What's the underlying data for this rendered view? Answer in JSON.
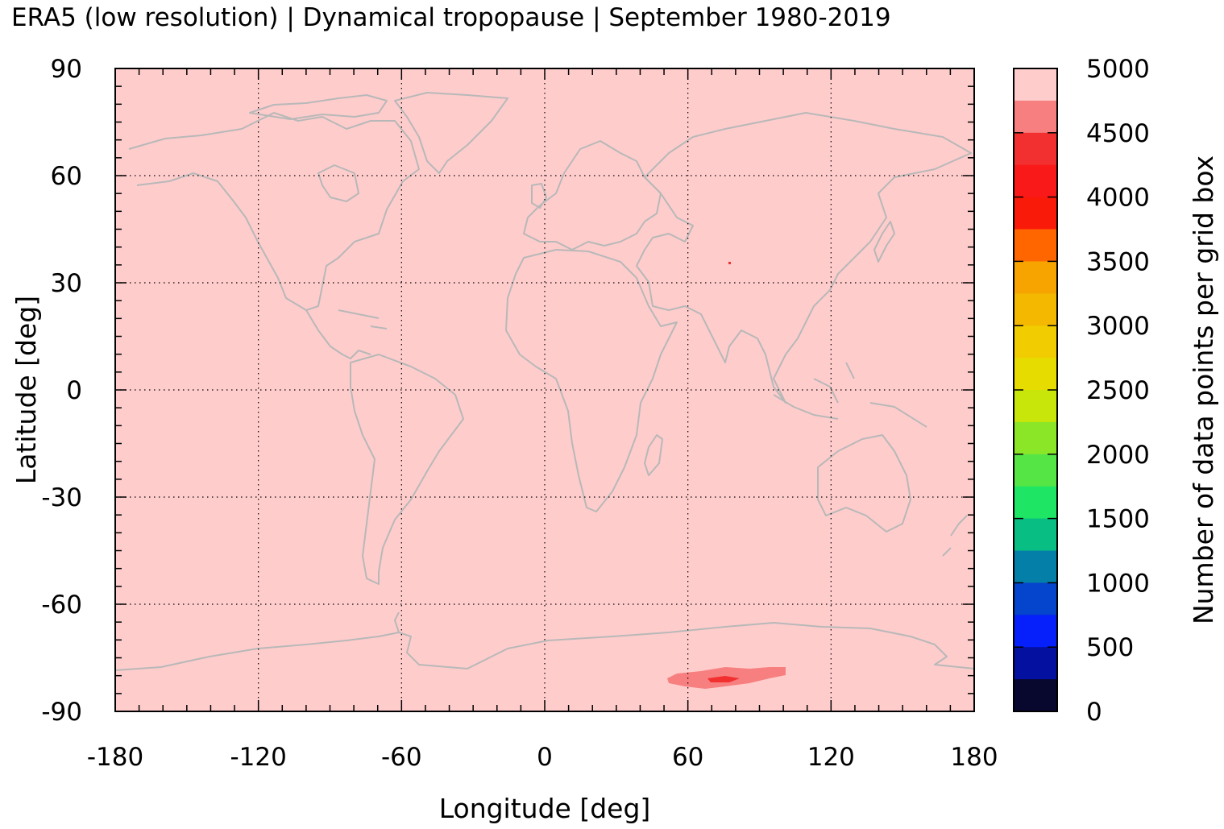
{
  "title": "ERA5 (low resolution) | Dynamical tropopause | September 1980-2019",
  "map": {
    "xlabel": "Longitude [deg]",
    "ylabel": "Latitude [deg]",
    "xlim": [
      -180,
      180
    ],
    "ylim": [
      -90,
      90
    ],
    "xticks": [
      "-180",
      "-120",
      "-60",
      "0",
      "60",
      "120",
      "180"
    ],
    "yticks": [
      "90",
      "60",
      "30",
      "0",
      "-30",
      "-60",
      "-90"
    ],
    "grid": true,
    "background_value": 5000,
    "coastline_color": "#b8b8b8",
    "features": [
      {
        "name": "East Antarctic plateau low-count patch",
        "value_range": [
          4500,
          4750
        ]
      },
      {
        "name": "East Antarctic plateau core",
        "value_range": [
          4000,
          4250
        ]
      },
      {
        "name": "Tibetan plateau pixel",
        "value_range": [
          4250,
          4500
        ]
      }
    ]
  },
  "colorbar": {
    "label": "Number of data points per grid box",
    "min": 0,
    "max": 5000,
    "tick_labels": [
      "5000",
      "4500",
      "4000",
      "3500",
      "3000",
      "2500",
      "2000",
      "1500",
      "1000",
      "500",
      "0"
    ],
    "bins_top_to_bottom": [
      "#ffcccc",
      "#f77f7f",
      "#f23030",
      "#fa1919",
      "#fa1a0a",
      "#ff6600",
      "#f8a400",
      "#f4b800",
      "#f0cc00",
      "#e6dc00",
      "#c8e60a",
      "#8ce628",
      "#55e646",
      "#1ee664",
      "#08be82",
      "#0480a8",
      "#0544cc",
      "#0520fa",
      "#0410a0",
      "#08082e"
    ]
  }
}
